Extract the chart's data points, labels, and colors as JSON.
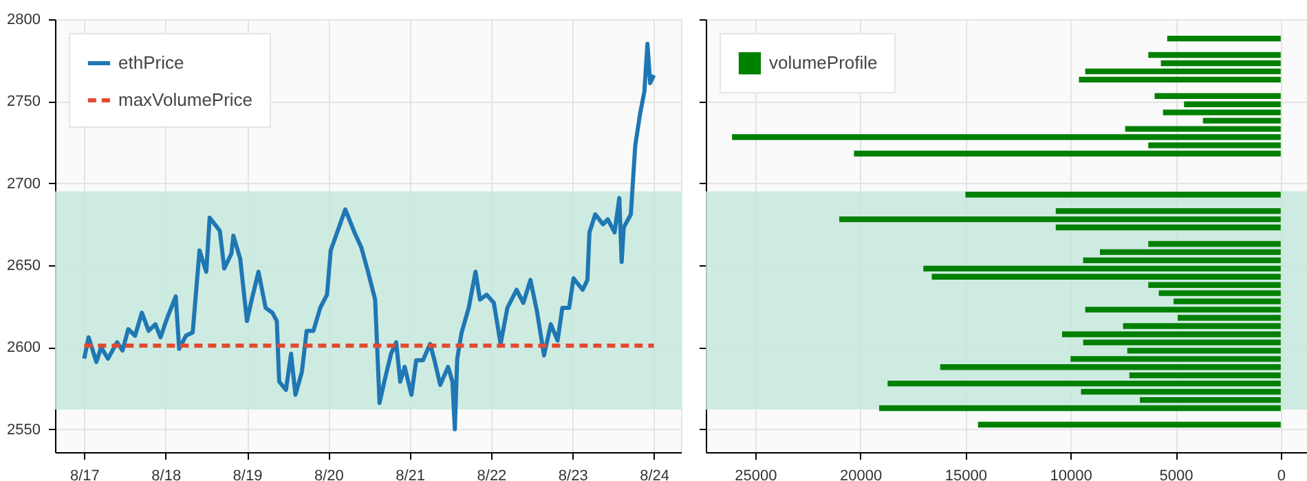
{
  "chart_data": [
    {
      "type": "line",
      "xlim": [
        "--08-16T15:24",
        "--08-24T08:00"
      ],
      "xticks": [
        {
          "value": "--08-17",
          "label": "8/17"
        },
        {
          "value": "--08-18",
          "label": "8/18"
        },
        {
          "value": "--08-19",
          "label": "8/19"
        },
        {
          "value": "--08-20",
          "label": "8/20"
        },
        {
          "value": "--08-21",
          "label": "8/21"
        },
        {
          "value": "--08-22",
          "label": "8/22"
        },
        {
          "value": "--08-23",
          "label": "8/23"
        },
        {
          "value": "--08-24",
          "label": "8/24"
        }
      ],
      "ylim": [
        2536,
        2800
      ],
      "yticks": [
        2550,
        2600,
        2650,
        2700,
        2750,
        2800
      ],
      "grid": true,
      "legend": "top left",
      "line_style": "solid",
      "bands": [
        {
          "axis": "y",
          "from": 2562,
          "to": 2695,
          "color": "#c6e7dc"
        }
      ],
      "series": [
        {
          "name": "ethPrice",
          "color": "#1f77b4",
          "x": [
            "--08-17T00:00",
            "--08-17T01:18",
            "--08-17T03:36",
            "--08-17T05:00",
            "--08-17T07:00",
            "--08-17T09:42",
            "--08-17T11:18",
            "--08-17T13:00",
            "--08-17T15:00",
            "--08-17T17:00",
            "--08-17T19:00",
            "--08-17T21:00",
            "--08-17T22:30",
            "--08-18T00:30",
            "--08-18T03:00",
            "--08-18T04:00",
            "--08-18T06:00",
            "--08-18T08:00",
            "--08-18T10:00",
            "--08-18T12:00",
            "--08-18T13:00",
            "--08-18T16:00",
            "--08-18T17:18",
            "--08-18T19:24",
            "--08-18T20:00",
            "--08-18T22:00",
            "--08-19T00:00",
            "--08-19T01:24",
            "--08-19T03:24",
            "--08-19T05:30",
            "--08-19T07:30",
            "--08-19T08:48",
            "--08-19T09:30",
            "--08-19T11:30",
            "--08-19T13:00",
            "--08-19T14:18",
            "--08-19T16:12",
            "--08-19T17:36",
            "--08-19T19:36",
            "--08-19T21:36",
            "--08-19T23:36",
            "--08-20T00:42",
            "--08-20T05:00",
            "--08-20T07:42",
            "--08-20T09:42",
            "--08-20T11:42",
            "--08-20T13:48",
            "--08-20T15:06",
            "--08-20T16:30",
            "--08-20T18:30",
            "--08-20T20:00",
            "--08-20T21:12",
            "--08-20T22:30",
            "--08-21T00:30",
            "--08-21T01:54",
            "--08-21T03:54",
            "--08-21T06:00",
            "--08-21T07:18",
            "--08-21T09:00",
            "--08-21T11:18",
            "--08-21T12:36",
            "--08-21T13:18",
            "--08-21T14:00",
            "--08-21T15:18",
            "--08-21T17:24",
            "--08-21T19:24",
            "--08-21T20:42",
            "--08-21T22:42",
            "--08-22T00:48",
            "--08-22T02:48",
            "--08-22T04:48",
            "--08-22T07:30",
            "--08-22T09:30",
            "--08-22T11:36",
            "--08-22T13:36",
            "--08-22T15:36",
            "--08-22T17:36",
            "--08-22T19:36",
            "--08-22T21:00",
            "--08-22T23:00",
            "--08-23T00:18",
            "--08-23T03:00",
            "--08-23T04:24",
            "--08-23T05:00",
            "--08-23T06:42",
            "--08-23T09:00",
            "--08-23T10:24",
            "--08-23T12:24",
            "--08-23T13:48",
            "--08-23T14:30",
            "--08-23T15:06",
            "--08-23T17:12",
            "--08-23T18:30",
            "--08-23T19:54",
            "--08-23T21:12",
            "--08-23T22:06",
            "--08-23T22:54",
            "--08-24T00:00"
          ],
          "values": [
            2593,
            2606,
            2591,
            2600,
            2593,
            2603,
            2598,
            2611,
            2607,
            2621,
            2610,
            2614,
            2606,
            2618,
            2631,
            2599,
            2607,
            2609,
            2659,
            2646,
            2679,
            2671,
            2648,
            2657,
            2668,
            2654,
            2616,
            2629,
            2646,
            2624,
            2621,
            2616,
            2579,
            2574,
            2596,
            2571,
            2585,
            2610,
            2610,
            2624,
            2632,
            2659,
            2684,
            2670,
            2661,
            2646,
            2629,
            2566,
            2579,
            2596,
            2603,
            2579,
            2588,
            2571,
            2592,
            2592,
            2602,
            2592,
            2577,
            2588,
            2579,
            2550,
            2593,
            2609,
            2624,
            2646,
            2629,
            2632,
            2627,
            2602,
            2624,
            2635,
            2627,
            2641,
            2621,
            2595,
            2614,
            2604,
            2624,
            2624,
            2642,
            2635,
            2641,
            2670,
            2681,
            2675,
            2678,
            2670,
            2691,
            2652,
            2673,
            2681,
            2723,
            2742,
            2756,
            2785,
            2761,
            2766
          ]
        },
        {
          "name": "maxVolumePrice",
          "color": "#e34a33",
          "x": [
            "--08-17T00:00",
            "--08-24T00:00"
          ],
          "values": [
            2601,
            2601
          ],
          "line_style": "dashed"
        }
      ]
    },
    {
      "type": "bar",
      "orientation": "horizontal",
      "categories": [
        null,
        null,
        null,
        null,
        null,
        null,
        null,
        null,
        null,
        null,
        null,
        null,
        null,
        null,
        null,
        null,
        null,
        null,
        null,
        null,
        null,
        null,
        null,
        null,
        null,
        null,
        null,
        null,
        null,
        null,
        null,
        null,
        null,
        null,
        null,
        null,
        null,
        null,
        null,
        null,
        null,
        null,
        null,
        null,
        null,
        null,
        null,
        null,
        null,
        null,
        null,
        null,
        null
      ],
      "xlim": [
        27350,
        -1250
      ],
      "xticks": [
        25000,
        20000,
        15000,
        10000,
        5000,
        0
      ],
      "tick_labels": "x",
      "grid": true,
      "legend": "top left",
      "series": [
        {
          "name": "volumeProfile",
          "color": "#008000",
          "values": [
            null,
            null,
            5400,
            null,
            6300,
            5700,
            9300,
            9600,
            null,
            6000,
            4600,
            5600,
            3700,
            7400,
            26100,
            6300,
            20300,
            null,
            null,
            null,
            null,
            15000,
            null,
            10700,
            21000,
            10700,
            null,
            6300,
            8600,
            9400,
            17000,
            16600,
            6300,
            5800,
            5100,
            9300,
            4900,
            7500,
            10400,
            9400,
            7300,
            10000,
            16200,
            7200,
            18700,
            9500,
            6700,
            19100,
            null,
            14400,
            null,
            null,
            null
          ]
        }
      ]
    }
  ]
}
